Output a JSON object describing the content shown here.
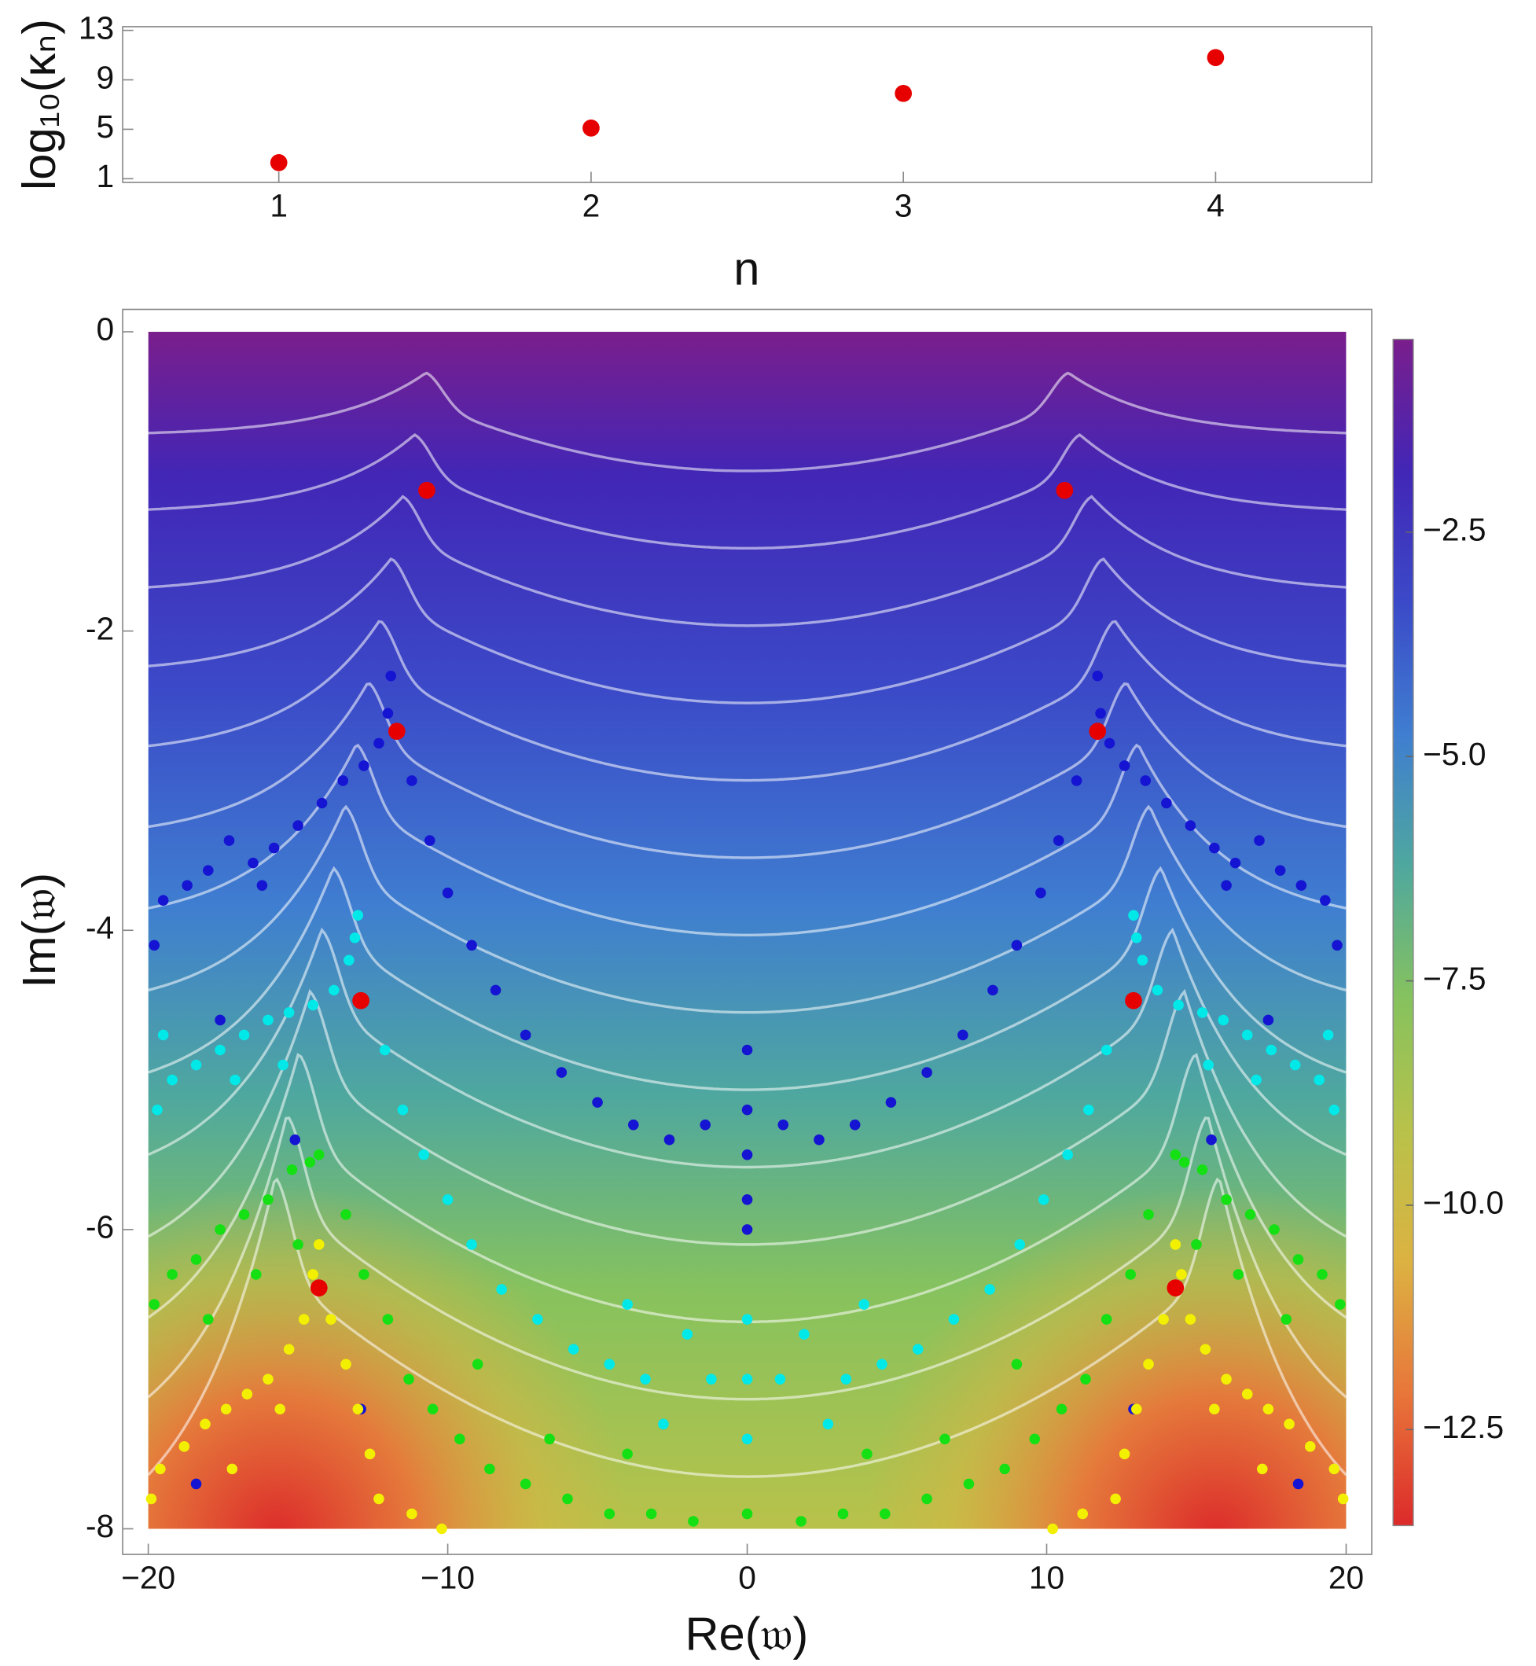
{
  "chart_data": [
    {
      "type": "scatter",
      "xlabel": "n",
      "ylabel": "log₁₀(κₙ)",
      "x": [
        1,
        2,
        3,
        4
      ],
      "values": [
        2.3,
        5.1,
        7.9,
        10.8
      ],
      "color": "#e60000",
      "xlim": [
        0.5,
        4.5
      ],
      "ylim": [
        0.7,
        13.3
      ],
      "xticks": [
        1,
        2,
        3,
        4
      ],
      "yticks": [
        1,
        5,
        9,
        13
      ]
    },
    {
      "type": "scatter",
      "xlabel": "Re(𝔴)",
      "ylabel": "Im(𝔴)",
      "xlim": [
        -20,
        20
      ],
      "ylim": [
        -8,
        0
      ],
      "xticks": [
        {
          "value": -20,
          "label": "−20"
        },
        {
          "value": -10,
          "label": "−10"
        },
        0,
        10,
        20
      ],
      "yticks": [
        0,
        -2,
        -4,
        -6,
        -8
      ],
      "colorbar": {
        "zlim": [
          -13.57,
          -0.35
        ],
        "ticks": [
          {
            "value": -2.5,
            "label": "−2.5"
          },
          {
            "value": -5.0,
            "label": "−5.0"
          },
          {
            "value": -7.5,
            "label": "−7.5"
          },
          {
            "value": -10.0,
            "label": "−10.0"
          },
          {
            "value": -12.5,
            "label": "−12.5"
          }
        ],
        "colormap": [
          "#dc2a2a",
          "#e8763a",
          "#dcb242",
          "#b8c24a",
          "#86c25e",
          "#4fa89e",
          "#3f7ed0",
          "#3b4ac8",
          "#4226b6",
          "#7a1e8c"
        ]
      },
      "series": [
        {
          "color": "#1414d2",
          "marker_size": 5,
          "x": [
            -11.9,
            -12.0,
            -12.3,
            -12.8,
            -13.5,
            -14.2,
            -15.0,
            -15.8,
            -16.5,
            -17.3,
            -18.0,
            -18.7,
            -19.5,
            -19.8,
            -16.2,
            -11.2,
            -10.6,
            -10.0,
            -9.2,
            -8.4,
            -7.4,
            -6.2,
            -5.0,
            -3.8,
            -2.6,
            -1.4,
            0,
            0,
            0,
            0,
            0,
            -18.4,
            -12.9,
            -17.6,
            -15.1,
            11.7,
            11.8,
            12.1,
            12.6,
            13.3,
            14.0,
            14.8,
            15.6,
            16.3,
            17.1,
            17.8,
            18.5,
            19.3,
            19.7,
            16.0,
            11.0,
            10.4,
            9.8,
            9.0,
            8.2,
            7.2,
            6.0,
            4.8,
            3.6,
            2.4,
            1.2,
            18.4,
            12.9,
            17.4,
            15.5
          ],
          "values": [
            -2.3,
            -2.55,
            -2.75,
            -2.9,
            -3.0,
            -3.15,
            -3.3,
            -3.45,
            -3.55,
            -3.4,
            -3.6,
            -3.7,
            -3.8,
            -4.1,
            -3.7,
            -3.0,
            -3.4,
            -3.75,
            -4.1,
            -4.4,
            -4.7,
            -4.95,
            -5.15,
            -5.3,
            -5.4,
            -5.3,
            -4.8,
            -5.2,
            -5.5,
            -5.8,
            -6.0,
            -7.7,
            -7.2,
            -4.6,
            -5.4,
            -2.3,
            -2.55,
            -2.75,
            -2.9,
            -3.0,
            -3.15,
            -3.3,
            -3.45,
            -3.55,
            -3.4,
            -3.6,
            -3.7,
            -3.8,
            -4.1,
            -3.7,
            -3.0,
            -3.4,
            -3.75,
            -4.1,
            -4.4,
            -4.7,
            -4.95,
            -5.15,
            -5.3,
            -5.4,
            -5.3,
            -7.7,
            -7.2,
            -4.6,
            -5.4
          ]
        },
        {
          "color": "#00e8e8",
          "marker_size": 5,
          "x": [
            -13.0,
            -13.1,
            -13.3,
            -13.8,
            -14.5,
            -15.3,
            -16.0,
            -16.8,
            -17.6,
            -18.4,
            -19.2,
            -19.7,
            -19.5,
            -17.1,
            -15.5,
            -12.1,
            -11.5,
            -10.8,
            -10.0,
            -9.2,
            -8.2,
            -7.0,
            -5.8,
            -4.6,
            -3.4,
            -2.0,
            -1.2,
            -2.8,
            -4.0,
            0,
            0,
            0,
            12.9,
            13.0,
            13.2,
            13.7,
            14.4,
            15.2,
            15.9,
            16.7,
            17.5,
            18.3,
            19.1,
            19.6,
            19.4,
            17.0,
            15.4,
            12.0,
            11.4,
            10.7,
            9.9,
            9.1,
            8.1,
            6.9,
            5.7,
            4.5,
            3.3,
            1.9,
            1.1,
            2.7,
            3.9
          ],
          "values": [
            -3.9,
            -4.05,
            -4.2,
            -4.4,
            -4.5,
            -4.55,
            -4.6,
            -4.7,
            -4.8,
            -4.9,
            -5.0,
            -5.2,
            -4.7,
            -5.0,
            -4.9,
            -4.8,
            -5.2,
            -5.5,
            -5.8,
            -6.1,
            -6.4,
            -6.6,
            -6.8,
            -6.9,
            -7.0,
            -6.7,
            -7.0,
            -7.3,
            -6.5,
            -6.6,
            -7.0,
            -7.4,
            -3.9,
            -4.05,
            -4.2,
            -4.4,
            -4.5,
            -4.55,
            -4.6,
            -4.7,
            -4.8,
            -4.9,
            -5.0,
            -5.2,
            -4.7,
            -5.0,
            -4.9,
            -4.8,
            -5.2,
            -5.5,
            -5.8,
            -6.1,
            -6.4,
            -6.6,
            -6.8,
            -6.9,
            -7.0,
            -6.7,
            -7.0,
            -7.3,
            -6.5
          ]
        },
        {
          "color": "#14e014",
          "marker_size": 5,
          "x": [
            -14.3,
            -14.6,
            -15.2,
            -16.0,
            -16.8,
            -17.6,
            -18.4,
            -19.2,
            -19.8,
            -18.0,
            -16.4,
            -15.0,
            -13.4,
            -12.8,
            -12.0,
            -11.3,
            -10.5,
            -9.6,
            -8.6,
            -7.4,
            -6.0,
            -4.6,
            -3.2,
            -1.8,
            -4.0,
            -6.6,
            -9.0,
            0,
            14.3,
            14.6,
            15.2,
            16.0,
            16.8,
            17.6,
            18.4,
            19.2,
            19.8,
            18.0,
            16.4,
            15.0,
            13.4,
            12.8,
            12.0,
            11.3,
            10.5,
            9.6,
            8.6,
            7.4,
            6.0,
            4.6,
            3.2,
            1.8,
            4.0,
            6.6,
            9.0
          ],
          "values": [
            -5.5,
            -5.55,
            -5.6,
            -5.8,
            -5.9,
            -6.0,
            -6.2,
            -6.3,
            -6.5,
            -6.6,
            -6.3,
            -6.1,
            -5.9,
            -6.3,
            -6.6,
            -7.0,
            -7.2,
            -7.4,
            -7.6,
            -7.7,
            -7.8,
            -7.9,
            -7.9,
            -7.95,
            -7.5,
            -7.4,
            -6.9,
            -7.9,
            -5.5,
            -5.55,
            -5.6,
            -5.8,
            -5.9,
            -6.0,
            -6.2,
            -6.3,
            -6.5,
            -6.6,
            -6.3,
            -6.1,
            -5.9,
            -6.3,
            -6.6,
            -7.0,
            -7.2,
            -7.4,
            -7.6,
            -7.7,
            -7.8,
            -7.9,
            -7.9,
            -7.95,
            -7.5,
            -7.4,
            -6.9
          ]
        },
        {
          "color": "#f2f000",
          "marker_size": 5,
          "x": [
            -14.3,
            -14.5,
            -14.8,
            -15.3,
            -16.0,
            -16.7,
            -17.4,
            -18.1,
            -18.8,
            -19.6,
            -19.9,
            -17.2,
            -15.6,
            -13.9,
            -13.4,
            -13.0,
            -12.6,
            -12.3,
            -11.2,
            -10.2,
            14.3,
            14.5,
            14.8,
            15.3,
            16.0,
            16.7,
            17.4,
            18.1,
            18.8,
            19.6,
            19.9,
            17.2,
            15.6,
            13.9,
            13.4,
            13.0,
            12.6,
            12.3,
            11.2,
            10.2
          ],
          "values": [
            -6.1,
            -6.3,
            -6.6,
            -6.8,
            -7.0,
            -7.1,
            -7.2,
            -7.3,
            -7.45,
            -7.6,
            -7.8,
            -7.6,
            -7.2,
            -6.6,
            -6.9,
            -7.2,
            -7.5,
            -7.8,
            -7.9,
            -8.0,
            -6.1,
            -6.3,
            -6.6,
            -6.8,
            -7.0,
            -7.1,
            -7.2,
            -7.3,
            -7.45,
            -7.6,
            -7.8,
            -7.6,
            -7.2,
            -6.6,
            -6.9,
            -7.2,
            -7.5,
            -7.8,
            -7.9,
            -8.0
          ]
        },
        {
          "color": "#e60000",
          "marker_size": 8,
          "x": [
            -10.7,
            10.6,
            -11.7,
            11.7,
            -12.9,
            12.9,
            -14.3,
            14.3
          ],
          "values": [
            -1.06,
            -1.06,
            -2.67,
            -2.67,
            -4.47,
            -4.47,
            -6.39,
            -6.39
          ]
        }
      ]
    }
  ]
}
